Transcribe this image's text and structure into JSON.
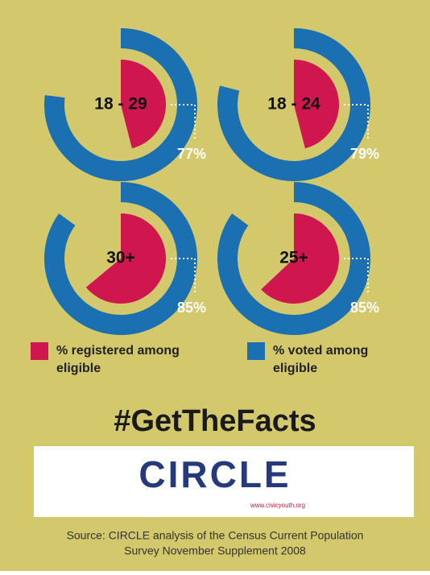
{
  "chart_data": [
    {
      "type": "donut",
      "title": "18 - 29",
      "series": [
        {
          "name": "% registered among eligible",
          "color": "#d0164f",
          "values": [
            46
          ]
        },
        {
          "name": "% voted among eligible",
          "color": "#1a70b1",
          "values": [
            77
          ],
          "value_labels": [
            "77%"
          ]
        }
      ]
    },
    {
      "type": "donut",
      "title": "18 - 24",
      "series": [
        {
          "name": "% registered among eligible",
          "color": "#d0164f",
          "values": [
            46
          ]
        },
        {
          "name": "% voted among eligible",
          "color": "#1a70b1",
          "values": [
            79
          ],
          "value_labels": [
            "79%"
          ]
        }
      ]
    },
    {
      "type": "donut",
      "title": "30+",
      "series": [
        {
          "name": "% registered among eligible",
          "color": "#d0164f",
          "values": [
            64
          ]
        },
        {
          "name": "% voted among eligible",
          "color": "#1a70b1",
          "values": [
            85
          ],
          "value_labels": [
            "85%"
          ]
        }
      ]
    },
    {
      "type": "donut",
      "title": "25+",
      "series": [
        {
          "name": "% registered among eligible",
          "color": "#d0164f",
          "values": [
            63
          ]
        },
        {
          "name": "% voted among eligible",
          "color": "#1a70b1",
          "values": [
            85
          ],
          "value_labels": [
            "85%"
          ]
        }
      ]
    }
  ],
  "hashtag": "#GetTheFacts",
  "logo": {
    "name": "CIRCLE",
    "url": "www.civicyouth.org"
  },
  "source": [
    "Source: CIRCLE analysis of the Census Current Population",
    "Survey November Supplement 2008"
  ]
}
